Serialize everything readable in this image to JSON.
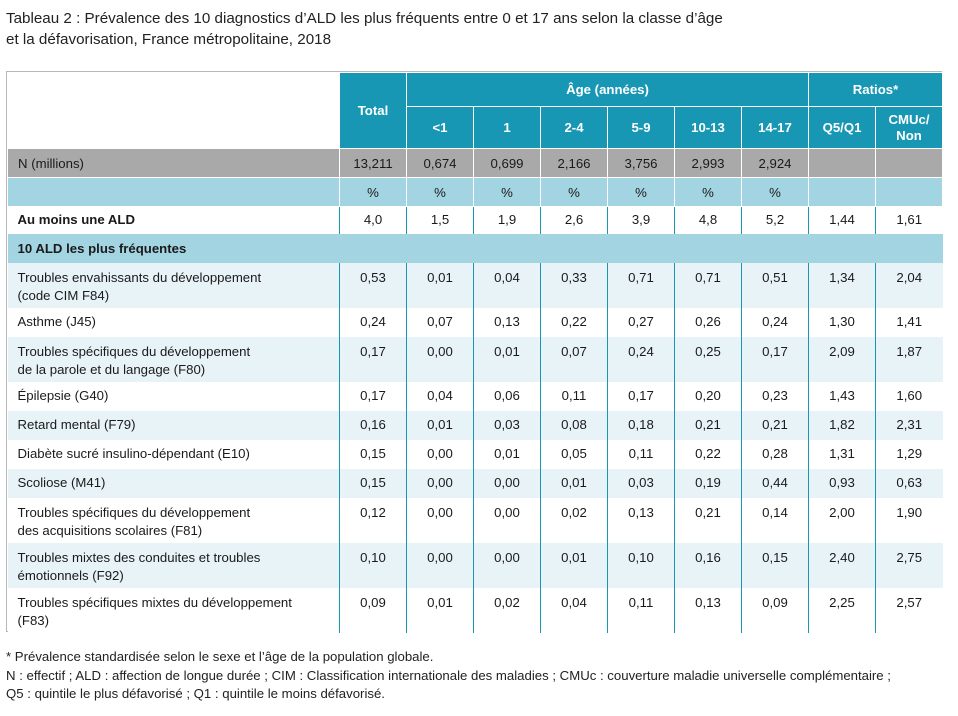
{
  "title_line1": "Tableau 2 : Prévalence des 10 diagnostics d’ALD les plus fréquents entre 0 et 17 ans selon la classe d’âge",
  "title_line2": "et la défavorisation, France métropolitaine, 2018",
  "header": {
    "total": "Total",
    "age_group": "Âge (années)",
    "ratios_group": "Ratios*",
    "ages": [
      "<1",
      "1",
      "2-4",
      "5-9",
      "10-13",
      "14-17"
    ],
    "ratio_q": "Q5/Q1",
    "ratio_cmu_line1": "CMUc/",
    "ratio_cmu_line2": "Non"
  },
  "n_row": {
    "label": "N (millions)",
    "values": [
      "13,211",
      "0,674",
      "0,699",
      "2,166",
      "3,756",
      "2,993",
      "2,924",
      "",
      ""
    ]
  },
  "unit_row": [
    "%",
    "%",
    "%",
    "%",
    "%",
    "%",
    "%",
    "",
    ""
  ],
  "at_least": {
    "label": "Au moins une ALD",
    "values": [
      "4,0",
      "1,5",
      "1,9",
      "2,6",
      "3,9",
      "4,8",
      "5,2",
      "1,44",
      "1,61"
    ]
  },
  "section_label": "10 ALD les plus fréquentes",
  "rows": [
    {
      "label": [
        "Troubles envahissants du développement",
        "(code CIM F84)"
      ],
      "values": [
        "0,53",
        "0,01",
        "0,04",
        "0,33",
        "0,71",
        "0,71",
        "0,51",
        "1,34",
        "2,04"
      ]
    },
    {
      "label": [
        "Asthme (J45)"
      ],
      "values": [
        "0,24",
        "0,07",
        "0,13",
        "0,22",
        "0,27",
        "0,26",
        "0,24",
        "1,30",
        "1,41"
      ]
    },
    {
      "label": [
        "Troubles spécifiques du développement",
        "de la parole et du langage (F80)"
      ],
      "values": [
        "0,17",
        "0,00",
        "0,01",
        "0,07",
        "0,24",
        "0,25",
        "0,17",
        "2,09",
        "1,87"
      ]
    },
    {
      "label": [
        "Épilepsie (G40)"
      ],
      "values": [
        "0,17",
        "0,04",
        "0,06",
        "0,11",
        "0,17",
        "0,20",
        "0,23",
        "1,43",
        "1,60"
      ]
    },
    {
      "label": [
        "Retard mental (F79)"
      ],
      "values": [
        "0,16",
        "0,01",
        "0,03",
        "0,08",
        "0,18",
        "0,21",
        "0,21",
        "1,82",
        "2,31"
      ]
    },
    {
      "label": [
        "Diabète sucré insulino-dépendant (E10)"
      ],
      "values": [
        "0,15",
        "0,00",
        "0,01",
        "0,05",
        "0,11",
        "0,22",
        "0,28",
        "1,31",
        "1,29"
      ]
    },
    {
      "label": [
        "Scoliose (M41)"
      ],
      "values": [
        "0,15",
        "0,00",
        "0,00",
        "0,01",
        "0,03",
        "0,19",
        "0,44",
        "0,93",
        "0,63"
      ]
    },
    {
      "label": [
        "Troubles spécifiques du développement",
        "des acquisitions scolaires (F81)"
      ],
      "values": [
        "0,12",
        "0,00",
        "0,00",
        "0,02",
        "0,13",
        "0,21",
        "0,14",
        "2,00",
        "1,90"
      ]
    },
    {
      "label": [
        "Troubles mixtes des conduites et troubles",
        "émotionnels (F92)"
      ],
      "values": [
        "0,10",
        "0,00",
        "0,00",
        "0,01",
        "0,10",
        "0,16",
        "0,15",
        "2,40",
        "2,75"
      ]
    },
    {
      "label": [
        "Troubles spécifiques mixtes du développement",
        "(F83)"
      ],
      "values": [
        "0,09",
        "0,01",
        "0,02",
        "0,04",
        "0,11",
        "0,13",
        "0,09",
        "2,25",
        "2,57"
      ]
    }
  ],
  "notes": [
    "* Prévalence standardisée selon le sexe et l’âge de la population globale.",
    "N : effectif ; ALD : affection de longue durée ; CIM : Classification internationale des maladies ; CMUc : couverture maladie universelle complémentaire ;",
    "Q5 : quintile le plus défavorisé ; Q1 : quintile le moins défavorisé."
  ],
  "colors": {
    "header": "#1797b4",
    "light_band": "#a3d4e2",
    "n_row": "#a9a9a9",
    "row_alt": "#e8f3f8"
  }
}
